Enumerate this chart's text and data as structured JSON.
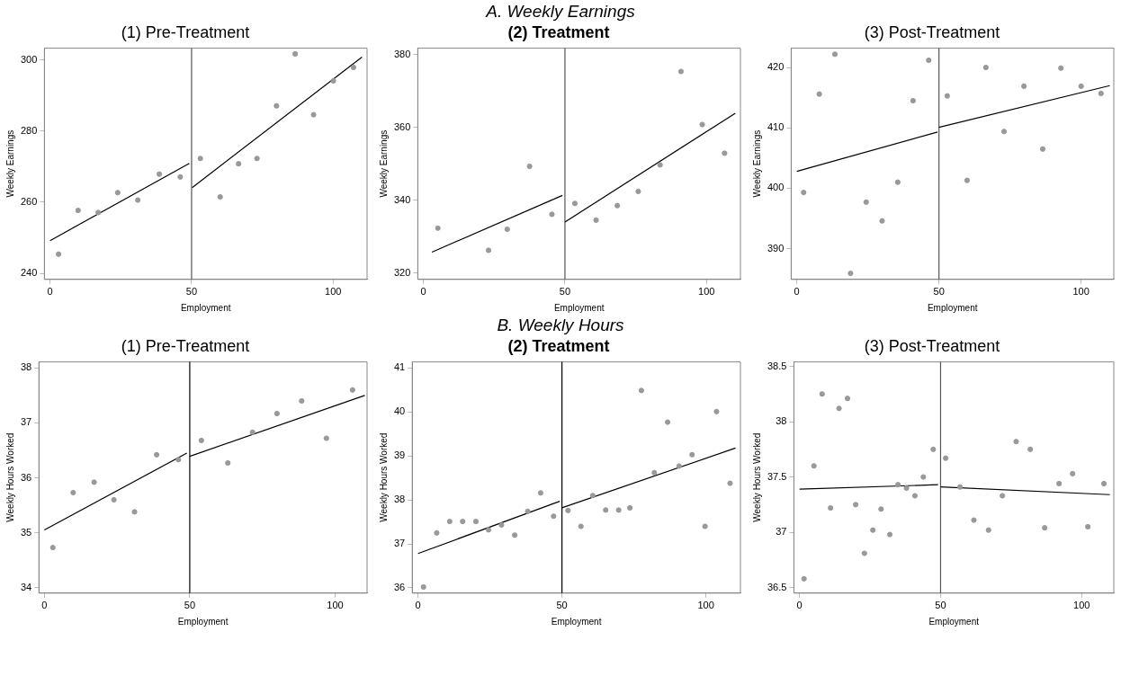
{
  "chart_data": [
    {
      "type": "scatter",
      "title": "(1) Pre-Treatment",
      "annotations": [
        "A. Weekly Earnings"
      ],
      "xlabel": "Employment",
      "ylabel": "Weekly Earnings",
      "xlim": [
        -2,
        112
      ],
      "xticks": [
        0,
        50,
        100
      ],
      "ylim": [
        238.3,
        303.3
      ],
      "yticks": [
        240,
        260,
        280,
        300
      ],
      "ref_lines": [
        {
          "axis": "x",
          "value": 50,
          "color": "#555555"
        }
      ],
      "series": [
        {
          "type": "scatter",
          "marker": "circle",
          "color": "#999999",
          "x": [
            3,
            9.9,
            17,
            23.9,
            31,
            38.6,
            46,
            53.1,
            60.1,
            66.6,
            73.1,
            80,
            86.6,
            93.1,
            100.1,
            107.2
          ],
          "values": [
            245.4,
            257.7,
            257.1,
            262.7,
            260.6,
            267.9,
            267.1,
            272.3,
            261.5,
            270.8,
            272.3,
            287.1,
            301.7,
            284.6,
            294.1,
            297.9
          ]
        },
        {
          "type": "line",
          "marker": "none",
          "color": "#000000",
          "x": [
            0,
            49.2
          ],
          "values": [
            249.2,
            270.9
          ]
        },
        {
          "type": "line",
          "marker": "none",
          "color": "#000000",
          "x": [
            50.2,
            110.2
          ],
          "values": [
            264.1,
            300.8
          ]
        }
      ]
    },
    {
      "type": "scatter",
      "title": "(2) Treatment",
      "xlabel": "Employment",
      "ylabel": "Weekly Earnings",
      "xlim": [
        -2,
        112
      ],
      "xticks": [
        0,
        50,
        100
      ],
      "ylim": [
        318.2,
        381.8
      ],
      "yticks": [
        320,
        340,
        360,
        380
      ],
      "ref_lines": [
        {
          "axis": "x",
          "value": 50,
          "color": "#555555"
        }
      ],
      "series": [
        {
          "type": "scatter",
          "marker": "circle",
          "color": "#999999",
          "x": [
            5.1,
            23,
            29.6,
            37.5,
            45.4,
            53.5,
            61,
            68.5,
            75.9,
            83.6,
            91,
            98.5,
            106.4
          ],
          "values": [
            332.3,
            326.2,
            332,
            349.3,
            336.1,
            339.1,
            334.5,
            338.5,
            342.4,
            349.7,
            375.4,
            360.8,
            352.9
          ]
        },
        {
          "type": "line",
          "marker": "none",
          "color": "#000000",
          "x": [
            3,
            49.1
          ],
          "values": [
            325.7,
            341.3
          ]
        },
        {
          "type": "line",
          "marker": "none",
          "color": "#000000",
          "x": [
            50,
            110.2
          ],
          "values": [
            334,
            363.9
          ]
        }
      ]
    },
    {
      "type": "scatter",
      "title": "(3) Post-Treatment",
      "xlabel": "Employment",
      "ylabel": "Weekly Earnings",
      "xlim": [
        -2,
        111.5
      ],
      "xticks": [
        0,
        50,
        100
      ],
      "ylim": [
        384.9,
        423.2
      ],
      "yticks": [
        390,
        400,
        410,
        420
      ],
      "ref_lines": [
        {
          "axis": "x",
          "value": 50,
          "color": "#555555"
        }
      ],
      "series": [
        {
          "type": "scatter",
          "marker": "circle",
          "color": "#999999",
          "x": [
            2.4,
            7.9,
            13.4,
            18.9,
            24.4,
            30,
            35.5,
            40.9,
            46.4,
            52.9,
            59.9,
            66.5,
            72.9,
            79.9,
            86.5,
            92.9,
            100,
            107
          ],
          "values": [
            399.3,
            415.6,
            422.2,
            385.9,
            397.7,
            394.6,
            401,
            414.5,
            421.2,
            415.3,
            401.3,
            420,
            409.4,
            416.9,
            406.5,
            419.9,
            416.9,
            415.7
          ]
        },
        {
          "type": "line",
          "marker": "none",
          "color": "#000000",
          "x": [
            0,
            49.5
          ],
          "values": [
            402.8,
            409.3
          ]
        },
        {
          "type": "line",
          "marker": "none",
          "color": "#000000",
          "x": [
            50,
            110.1
          ],
          "values": [
            410.1,
            417
          ]
        }
      ]
    },
    {
      "type": "scatter",
      "title": "(1) Pre-Treatment",
      "annotations": [
        "B. Weekly Hours"
      ],
      "xlabel": "Employment",
      "ylabel": "Weekly Hours Worked",
      "xlim": [
        -1.9,
        111
      ],
      "xticks": [
        0,
        50,
        100
      ],
      "ylim": [
        33.9,
        38.11
      ],
      "yticks": [
        34,
        35,
        36,
        37,
        38
      ],
      "ref_lines": [
        {
          "axis": "x",
          "value": 50,
          "color": "#000000"
        }
      ],
      "series": [
        {
          "type": "scatter",
          "marker": "circle",
          "color": "#999999",
          "x": [
            2.9,
            9.9,
            17.1,
            23.9,
            31,
            38.6,
            46.1,
            54,
            63.1,
            71.6,
            80,
            88.5,
            97,
            106
          ],
          "values": [
            34.73,
            35.73,
            35.92,
            35.6,
            35.38,
            36.42,
            36.33,
            36.68,
            36.27,
            36.83,
            37.17,
            37.4,
            36.72,
            37.6
          ]
        },
        {
          "type": "line",
          "marker": "none",
          "color": "#000000",
          "x": [
            0,
            49
          ],
          "values": [
            35.05,
            36.45
          ]
        },
        {
          "type": "line",
          "marker": "none",
          "color": "#000000",
          "x": [
            50,
            110.2
          ],
          "values": [
            36.39,
            37.5
          ]
        }
      ]
    },
    {
      "type": "scatter",
      "title": "(2) Treatment",
      "xlabel": "Employment",
      "ylabel": "Weekly Hours Worked",
      "xlim": [
        -2,
        112
      ],
      "xticks": [
        0,
        50,
        100
      ],
      "ylim": [
        35.88,
        41.14
      ],
      "yticks": [
        36,
        37,
        38,
        39,
        40,
        41
      ],
      "ref_lines": [
        {
          "axis": "x",
          "value": 50,
          "color": "#000000"
        }
      ],
      "series": [
        {
          "type": "scatter",
          "marker": "circle",
          "color": "#999999",
          "x": [
            1.9,
            6.5,
            11,
            15.5,
            20.1,
            24.5,
            29,
            33.6,
            38.1,
            42.6,
            47.1,
            52.1,
            56.6,
            60.7,
            65.2,
            69.7,
            73.6,
            77.6,
            82.1,
            86.7,
            90.7,
            95.2,
            99.7,
            103.7,
            108.4
          ],
          "values": [
            36.02,
            37.25,
            37.51,
            37.51,
            37.51,
            37.32,
            37.43,
            37.2,
            37.74,
            38.16,
            37.63,
            37.76,
            37.4,
            38.1,
            37.77,
            37.77,
            37.82,
            40.49,
            38.62,
            39.77,
            38.77,
            39.03,
            37.4,
            40.01,
            38.38
          ]
        },
        {
          "type": "line",
          "marker": "none",
          "color": "#000000",
          "x": [
            0,
            49.2
          ],
          "values": [
            36.78,
            37.97
          ]
        },
        {
          "type": "line",
          "marker": "none",
          "color": "#000000",
          "x": [
            50,
            110.3
          ],
          "values": [
            37.82,
            39.18
          ]
        }
      ]
    },
    {
      "type": "scatter",
      "title": "(3) Post-Treatment",
      "xlabel": "Employment",
      "ylabel": "Weekly Hours Worked",
      "xlim": [
        -2,
        111.4
      ],
      "xticks": [
        0,
        50,
        100
      ],
      "ylim": [
        36.45,
        38.54
      ],
      "yticks": [
        36.5,
        37,
        37.5,
        38,
        38.5
      ],
      "ref_lines": [
        {
          "axis": "x",
          "value": 50,
          "color": "#555555"
        }
      ],
      "series": [
        {
          "type": "scatter",
          "marker": "circle",
          "color": "#999999",
          "x": [
            1.6,
            5.1,
            8,
            11,
            14,
            17,
            19.9,
            23,
            26,
            28.9,
            32,
            34.9,
            37.9,
            40.9,
            43.9,
            47.4,
            51.8,
            56.9,
            61.8,
            67,
            71.9,
            76.8,
            81.8,
            86.9,
            92,
            96.8,
            102.2,
            107.9
          ],
          "values": [
            36.58,
            37.6,
            38.25,
            37.22,
            38.12,
            38.21,
            37.25,
            36.81,
            37.02,
            37.21,
            36.98,
            37.43,
            37.4,
            37.33,
            37.5,
            37.75,
            37.67,
            37.41,
            37.11,
            37.02,
            37.33,
            37.82,
            37.75,
            37.04,
            37.44,
            37.53,
            37.05,
            37.44
          ]
        },
        {
          "type": "line",
          "marker": "none",
          "color": "#000000",
          "x": [
            0,
            49.1
          ],
          "values": [
            37.39,
            37.43
          ]
        },
        {
          "type": "line",
          "marker": "none",
          "color": "#000000",
          "x": [
            50,
            110
          ],
          "values": [
            37.41,
            37.34
          ]
        }
      ]
    }
  ]
}
